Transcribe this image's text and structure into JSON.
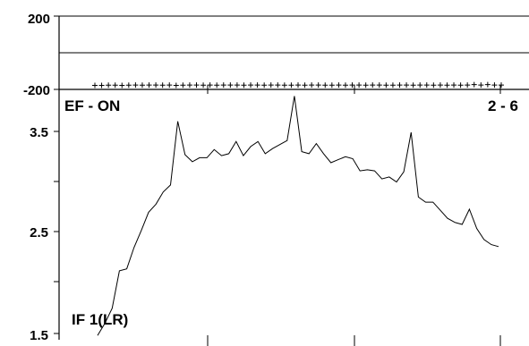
{
  "chart_data": [
    {
      "type": "scatter",
      "panel": "phase",
      "y_ticks": [
        "200",
        "-200"
      ],
      "ylim": [
        -200,
        200
      ],
      "reference_line": 0,
      "marker": "+",
      "values": [
        -178,
        -178,
        -177,
        -177,
        -178,
        -177,
        -176,
        -177,
        -176,
        -176,
        -177,
        -176,
        -178,
        -177,
        -176,
        -176,
        -177,
        -176,
        -177,
        -176,
        -176,
        -176,
        -177,
        -176,
        -176,
        -177,
        -176,
        -176,
        -177,
        -177,
        -176,
        -177,
        -176,
        -176,
        -177,
        -177,
        -176,
        -177,
        -176,
        -176,
        -177,
        -176,
        -176,
        -177,
        -177,
        -176,
        -176,
        -177,
        -176,
        -176,
        -177,
        -176,
        -177,
        -176,
        -177,
        -176,
        -174,
        -176,
        -174,
        -176,
        -176
      ]
    },
    {
      "type": "line",
      "panel": "amplitude",
      "y_ticks": [
        "3.5",
        "2.5",
        "1.5"
      ],
      "ylim": [
        1.5,
        3.62
      ],
      "x_range": [
        0,
        61
      ],
      "values": [
        1.48,
        1.6,
        1.75,
        2.12,
        2.14,
        2.35,
        2.52,
        2.7,
        2.78,
        2.9,
        2.97,
        3.6,
        3.27,
        3.2,
        3.24,
        3.24,
        3.32,
        3.26,
        3.28,
        3.4,
        3.26,
        3.35,
        3.4,
        3.28,
        3.33,
        3.37,
        3.41,
        3.85,
        3.3,
        3.28,
        3.38,
        3.28,
        3.19,
        3.22,
        3.25,
        3.23,
        3.11,
        3.12,
        3.11,
        3.03,
        3.05,
        3.0,
        3.1,
        3.49,
        2.85,
        2.8,
        2.8,
        2.72,
        2.64,
        2.6,
        2.58,
        2.73,
        2.54,
        2.43,
        2.38,
        2.36
      ]
    }
  ],
  "labels": {
    "panel_top": "EF - ON",
    "panel_top_right": "2 - 6",
    "panel_bottom": "IF 1(LR)"
  }
}
